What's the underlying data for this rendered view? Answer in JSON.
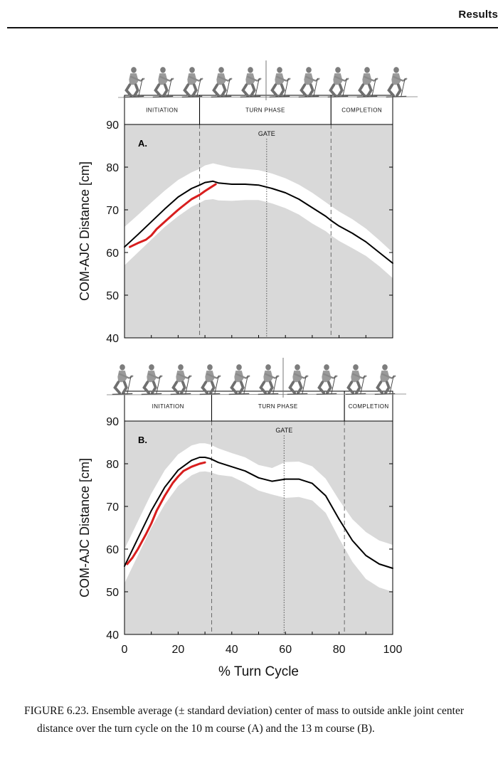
{
  "header": {
    "section_title": "Results"
  },
  "chart_data": [
    {
      "type": "line",
      "panel_label": "A.",
      "phases": [
        "INITIATION",
        "TURN PHASE",
        "COMPLETION"
      ],
      "phase_boundaries": [
        28,
        77
      ],
      "gate_label": "GATE",
      "gate_x": 53,
      "ylabel": "COM-AJC Distance [cm]",
      "xlim": [
        0,
        100
      ],
      "ylim": [
        40,
        90
      ],
      "y_ticks": [
        40,
        50,
        60,
        70,
        80,
        90
      ],
      "grid": false,
      "series": [
        {
          "role": "mean",
          "color": "#000000",
          "x": [
            0,
            5,
            10,
            15,
            20,
            25,
            28,
            30,
            33,
            35,
            40,
            45,
            50,
            55,
            60,
            65,
            70,
            75,
            77,
            80,
            85,
            90,
            95,
            100
          ],
          "y": [
            61.3,
            64.2,
            67.2,
            70.2,
            73.0,
            75.0,
            75.8,
            76.4,
            76.7,
            76.3,
            76.0,
            76.0,
            75.8,
            75.0,
            74.0,
            72.5,
            70.5,
            68.5,
            67.5,
            66.2,
            64.5,
            62.5,
            60.0,
            57.5
          ]
        },
        {
          "role": "upper_sd",
          "color": "#ffffff",
          "x": [
            0,
            5,
            10,
            15,
            20,
            25,
            28,
            30,
            33,
            35,
            40,
            45,
            50,
            55,
            60,
            65,
            70,
            75,
            77,
            80,
            85,
            90,
            95,
            100
          ],
          "y": [
            66.0,
            68.8,
            71.7,
            74.5,
            77.0,
            78.8,
            79.6,
            80.4,
            80.9,
            80.6,
            79.9,
            79.6,
            79.3,
            78.5,
            77.4,
            75.9,
            74.0,
            71.8,
            70.9,
            69.6,
            67.8,
            65.6,
            62.9,
            60.0
          ]
        },
        {
          "role": "lower_sd",
          "color": "#ffffff",
          "x": [
            0,
            5,
            10,
            15,
            20,
            25,
            28,
            30,
            33,
            35,
            40,
            45,
            50,
            55,
            60,
            65,
            70,
            75,
            77,
            80,
            85,
            90,
            95,
            100
          ],
          "y": [
            57.0,
            60.0,
            63.0,
            66.0,
            68.5,
            70.7,
            71.6,
            72.3,
            72.5,
            72.2,
            72.1,
            72.3,
            72.3,
            71.5,
            70.4,
            68.9,
            66.8,
            65.0,
            64.0,
            62.7,
            61.0,
            59.2,
            56.8,
            54.0
          ]
        },
        {
          "role": "highlight",
          "color": "#d81e1e",
          "x": [
            2,
            5,
            8,
            10,
            12,
            15,
            18,
            20,
            22,
            25,
            28,
            30,
            32,
            34
          ],
          "y": [
            61.3,
            62.2,
            63.0,
            64.0,
            65.5,
            67.2,
            68.9,
            70.0,
            71.0,
            72.5,
            73.5,
            74.4,
            75.2,
            76.0
          ]
        }
      ]
    },
    {
      "type": "line",
      "panel_label": "B.",
      "phases": [
        "INITIATION",
        "TURN PHASE",
        "COMPLETION"
      ],
      "phase_boundaries": [
        32.5,
        82
      ],
      "gate_label": "GATE",
      "gate_x": 59.5,
      "xlabel": "% Turn Cycle",
      "ylabel": "COM-AJC Distance [cm]",
      "xlim": [
        0,
        100
      ],
      "ylim": [
        40,
        90
      ],
      "x_ticks": [
        0,
        20,
        40,
        60,
        80,
        100
      ],
      "y_ticks": [
        40,
        50,
        60,
        70,
        80,
        90
      ],
      "grid": false,
      "series": [
        {
          "role": "mean",
          "color": "#000000",
          "x": [
            0,
            5,
            10,
            15,
            20,
            25,
            28,
            30,
            32,
            35,
            40,
            45,
            50,
            55,
            60,
            65,
            70,
            75,
            80,
            85,
            90,
            95,
            100
          ],
          "y": [
            56.0,
            62.5,
            69.0,
            74.5,
            78.5,
            80.8,
            81.5,
            81.5,
            81.2,
            80.3,
            79.3,
            78.3,
            76.7,
            75.9,
            76.4,
            76.4,
            75.4,
            72.5,
            67.0,
            62.0,
            58.5,
            56.5,
            55.5
          ]
        },
        {
          "role": "upper_sd",
          "color": "#ffffff",
          "x": [
            0,
            5,
            10,
            15,
            20,
            25,
            28,
            30,
            32,
            35,
            40,
            45,
            50,
            55,
            60,
            65,
            70,
            75,
            80,
            85,
            90,
            95,
            100
          ],
          "y": [
            60.0,
            66.5,
            73.0,
            78.5,
            82.2,
            84.3,
            84.8,
            84.8,
            84.5,
            83.6,
            82.5,
            81.5,
            79.7,
            79.0,
            80.4,
            80.5,
            79.4,
            76.5,
            71.5,
            67.0,
            64.0,
            62.0,
            61.0
          ]
        },
        {
          "role": "lower_sd",
          "color": "#ffffff",
          "x": [
            0,
            5,
            10,
            15,
            20,
            25,
            28,
            30,
            32,
            35,
            40,
            45,
            50,
            55,
            60,
            65,
            70,
            75,
            80,
            85,
            90,
            95,
            100
          ],
          "y": [
            52.0,
            58.5,
            65.0,
            70.5,
            74.8,
            77.3,
            78.1,
            78.2,
            78.0,
            77.4,
            77.0,
            75.5,
            73.7,
            72.8,
            72.0,
            72.2,
            71.4,
            68.5,
            62.5,
            57.0,
            53.0,
            51.0,
            50.0
          ]
        },
        {
          "role": "highlight",
          "color": "#d81e1e",
          "x": [
            1,
            3,
            5,
            8,
            10,
            12,
            15,
            18,
            20,
            22,
            25,
            28,
            30
          ],
          "y": [
            56.5,
            58.0,
            60.0,
            63.5,
            66.0,
            69.0,
            72.5,
            75.5,
            77.0,
            78.3,
            79.3,
            80.0,
            80.3
          ]
        }
      ]
    }
  ],
  "caption": {
    "text": "FIGURE 6.23.  Ensemble average (± standard deviation) center of mass to outside ankle joint center distance over the turn cycle on the 10 m course (A) and the 13 m course (B)."
  },
  "colors": {
    "plot_background": "#d9d9d9",
    "sd_band": "#ffffff",
    "mean_line": "#000000",
    "highlight_line": "#d81e1e",
    "skier_icons": "#8a8a8a"
  }
}
